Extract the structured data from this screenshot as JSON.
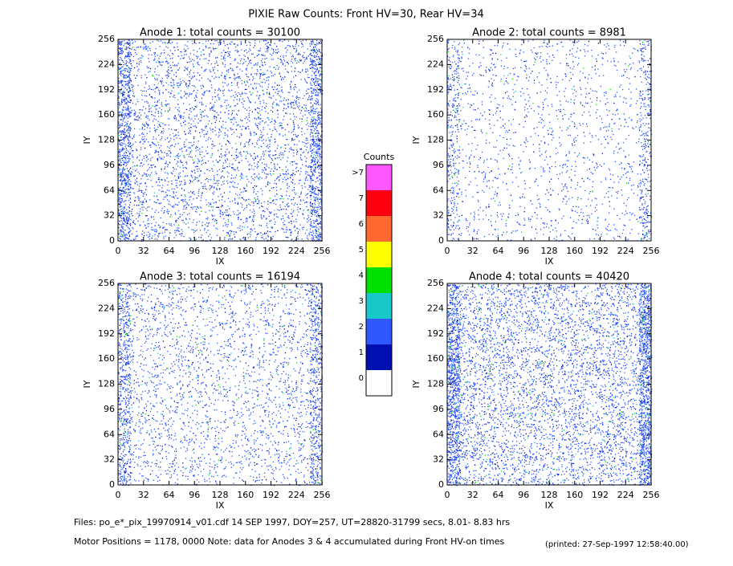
{
  "title": "PIXIE Raw Counts:  Front HV=30, Rear HV=34",
  "chart_data": [
    {
      "type": "heatmap",
      "title": "Anode 1: total counts = 30100",
      "xlabel": "IX",
      "ylabel": "IY",
      "xlim": [
        0,
        256
      ],
      "ylim": [
        0,
        256
      ],
      "xticks": [
        0,
        32,
        64,
        96,
        128,
        160,
        192,
        224,
        256
      ],
      "yticks": [
        0,
        32,
        64,
        96,
        128,
        160,
        192,
        224,
        256
      ]
    },
    {
      "type": "heatmap",
      "title": "Anode 2: total counts = 8981",
      "xlabel": "IX",
      "ylabel": "IY",
      "xlim": [
        0,
        256
      ],
      "ylim": [
        0,
        256
      ],
      "xticks": [
        0,
        32,
        64,
        96,
        128,
        160,
        192,
        224,
        256
      ],
      "yticks": [
        0,
        32,
        64,
        96,
        128,
        160,
        192,
        224,
        256
      ]
    },
    {
      "type": "heatmap",
      "title": "Anode 3: total counts = 16194",
      "xlabel": "IX",
      "ylabel": "IY",
      "xlim": [
        0,
        256
      ],
      "ylim": [
        0,
        256
      ],
      "xticks": [
        0,
        32,
        64,
        96,
        128,
        160,
        192,
        224,
        256
      ],
      "yticks": [
        0,
        32,
        64,
        96,
        128,
        160,
        192,
        224,
        256
      ]
    },
    {
      "type": "heatmap",
      "title": "Anode 4: total counts = 40420",
      "xlabel": "IX",
      "ylabel": "IY",
      "xlim": [
        0,
        256
      ],
      "ylim": [
        0,
        256
      ],
      "xticks": [
        0,
        32,
        64,
        96,
        128,
        160,
        192,
        224,
        256
      ],
      "yticks": [
        0,
        32,
        64,
        96,
        128,
        160,
        192,
        224,
        256
      ]
    }
  ],
  "colorbar": {
    "title": "Counts",
    "levels": [
      {
        "label": "0",
        "color": "#ffffff"
      },
      {
        "label": "1",
        "color": "#0010b0"
      },
      {
        "label": "2",
        "color": "#3058ff"
      },
      {
        "label": "3",
        "color": "#18c8c8"
      },
      {
        "label": "4",
        "color": "#00e000"
      },
      {
        "label": "5",
        "color": "#ffff00"
      },
      {
        "label": "6",
        "color": "#ff6830"
      },
      {
        "label": "7",
        "color": "#ff0010"
      },
      {
        "label": ">7",
        "color": "#ff58ff"
      }
    ]
  },
  "footer": {
    "files": "Files: po_e*_pix_19970914_v01.cdf    14 SEP 1997, DOY=257, UT=28820-31799 secs,  8.01- 8.83 hrs",
    "motor": "Motor Positions = 1178, 0000   Note: data for Anodes 3 & 4 accumulated during Front HV-on times",
    "printed": "(printed: 27-Sep-1997 12:58:40.00)"
  }
}
